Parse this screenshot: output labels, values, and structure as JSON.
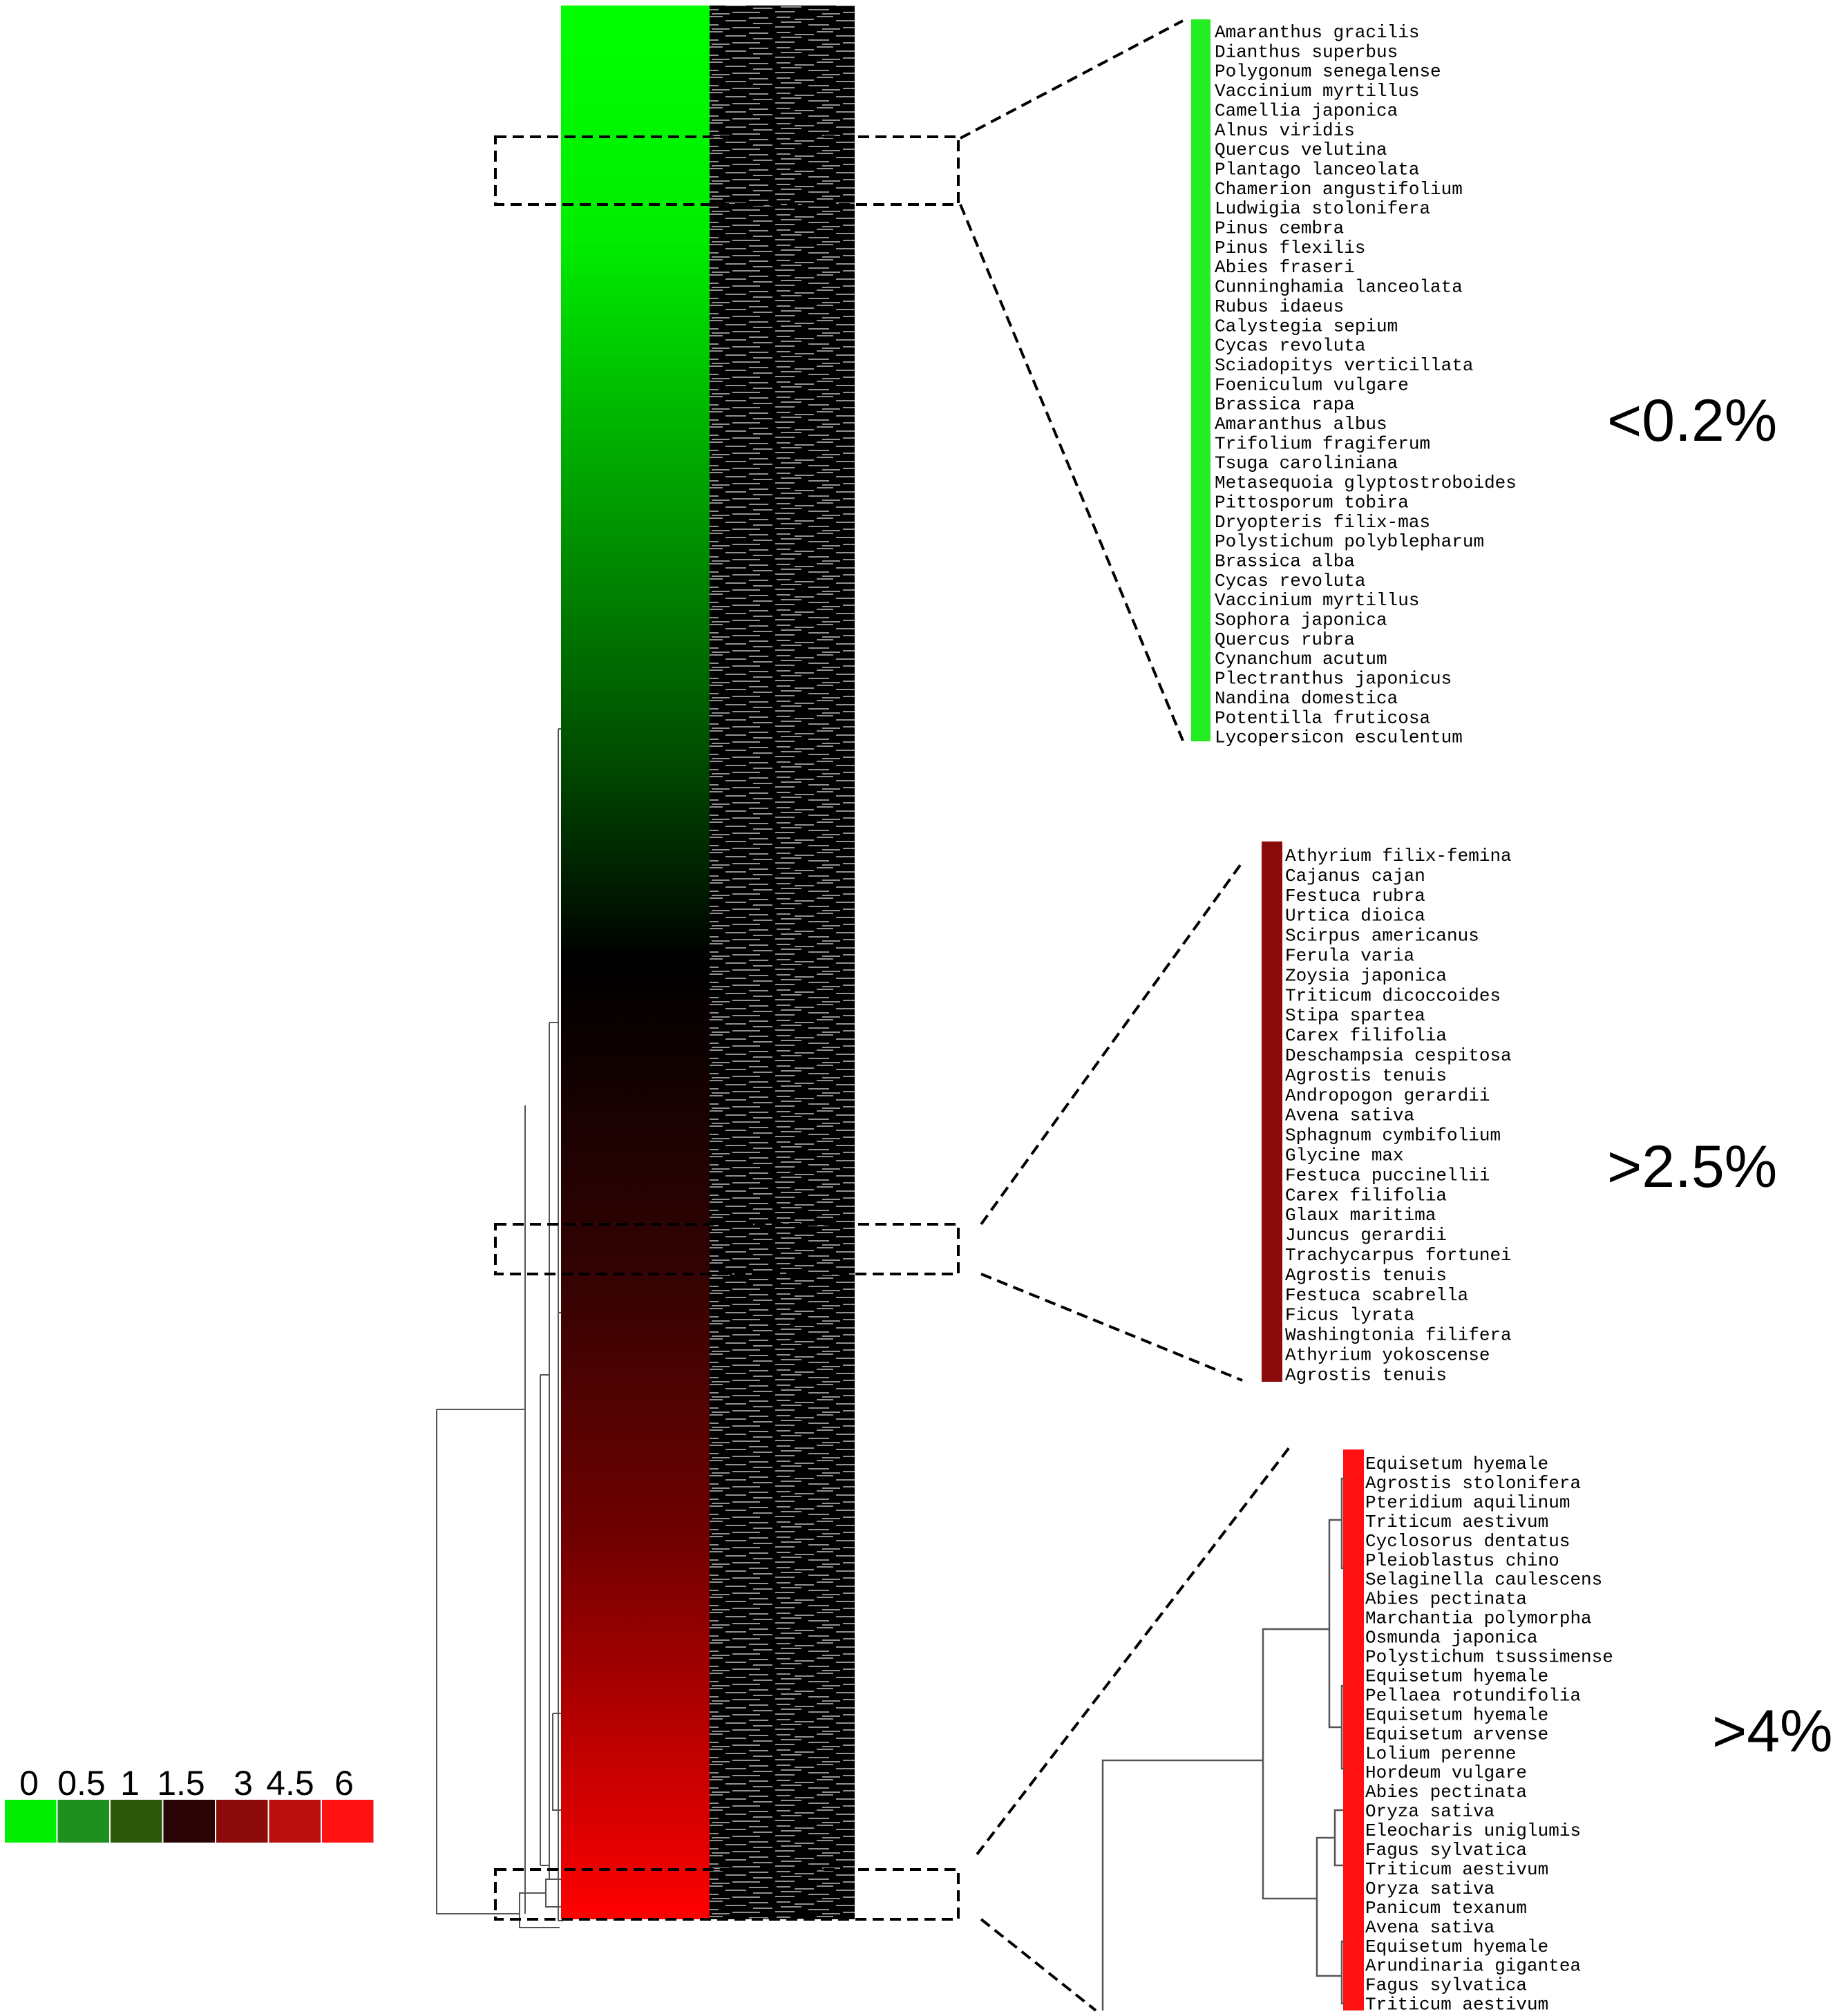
{
  "colors": {
    "low": "#00ff00",
    "mid": "#000000",
    "high": "#ff0000",
    "panel_low": "#22ee22",
    "panel_mid": "#8b0a0a",
    "panel_high": "#ff1111"
  },
  "legend": {
    "labels": [
      "0",
      "0.5",
      "1",
      "1.5",
      "3",
      "4.5",
      "6"
    ],
    "swatches": [
      "#00ee00",
      "#1f8f1f",
      "#2d5a0a",
      "#2a0404",
      "#8b0a0a",
      "#bb0e0e",
      "#ff1111"
    ]
  },
  "panels": [
    {
      "label": "<0.2%",
      "color": "#22ee22",
      "species": [
        "Amaranthus gracilis",
        "Dianthus superbus",
        "Polygonum senegalense",
        "Vaccinium myrtillus",
        "Camellia japonica",
        "Alnus viridis",
        "Quercus velutina",
        "Plantago lanceolata",
        "Chamerion angustifolium",
        "Ludwigia stolonifera",
        "Pinus cembra",
        "Pinus flexilis",
        "Abies fraseri",
        "Cunninghamia lanceolata",
        "Rubus idaeus",
        "Calystegia sepium",
        "Cycas revoluta",
        "Sciadopitys verticillata",
        "Foeniculum vulgare",
        "Brassica rapa",
        "Amaranthus albus",
        "Trifolium fragiferum",
        "Tsuga caroliniana",
        "Metasequoia glyptostroboides",
        "Pittosporum tobira",
        "Dryopteris filix-mas",
        "Polystichum polyblepharum",
        "Brassica alba",
        "Cycas revoluta",
        "Vaccinium myrtillus",
        "Sophora japonica",
        "Quercus rubra",
        "Cynanchum acutum",
        "Plectranthus japonicus",
        "Nandina domestica",
        "Potentilla fruticosa",
        "Lycopersicon esculentum"
      ]
    },
    {
      "label": ">2.5%",
      "color": "#8b0a0a",
      "species": [
        "Athyrium filix-femina",
        "Cajanus cajan",
        "Festuca rubra",
        "Urtica dioica",
        "Scirpus americanus",
        "Ferula varia",
        "Zoysia japonica",
        "Triticum dicoccoides",
        "Stipa spartea",
        "Carex filifolia",
        "Deschampsia cespitosa",
        "Agrostis tenuis",
        "Andropogon gerardii",
        "Avena sativa",
        "Sphagnum cymbifolium",
        "Glycine max",
        "Festuca puccinellii",
        "Carex filifolia",
        "Glaux maritima",
        "Juncus gerardii",
        "Trachycarpus fortunei",
        "Agrostis tenuis",
        "Festuca scabrella",
        "Ficus lyrata",
        "Washingtonia filifera",
        "Athyrium yokoscense",
        "Agrostis tenuis"
      ]
    },
    {
      "label": ">4%",
      "color": "#ff1111",
      "species": [
        "Equisetum hyemale",
        "Agrostis stolonifera",
        "Pteridium aquilinum",
        "Triticum aestivum",
        "Cyclosorus dentatus",
        "Pleioblastus chino",
        "Selaginella caulescens",
        "Abies pectinata",
        "Marchantia polymorpha",
        "Osmunda japonica",
        "Polystichum tsussimense",
        "Equisetum hyemale",
        "Pellaea rotundifolia",
        "Equisetum hyemale",
        "Equisetum arvense",
        "Lolium perenne",
        "Hordeum vulgare",
        "Abies pectinata",
        "Oryza sativa",
        "Eleocharis uniglumis",
        "Fagus sylvatica",
        "Triticum aestivum",
        "Oryza sativa",
        "Panicum texanum",
        "Avena sativa",
        "Equisetum hyemale",
        "Arundinaria gigantea",
        "Fagus sylvatica",
        "Triticum aestivum"
      ]
    }
  ]
}
